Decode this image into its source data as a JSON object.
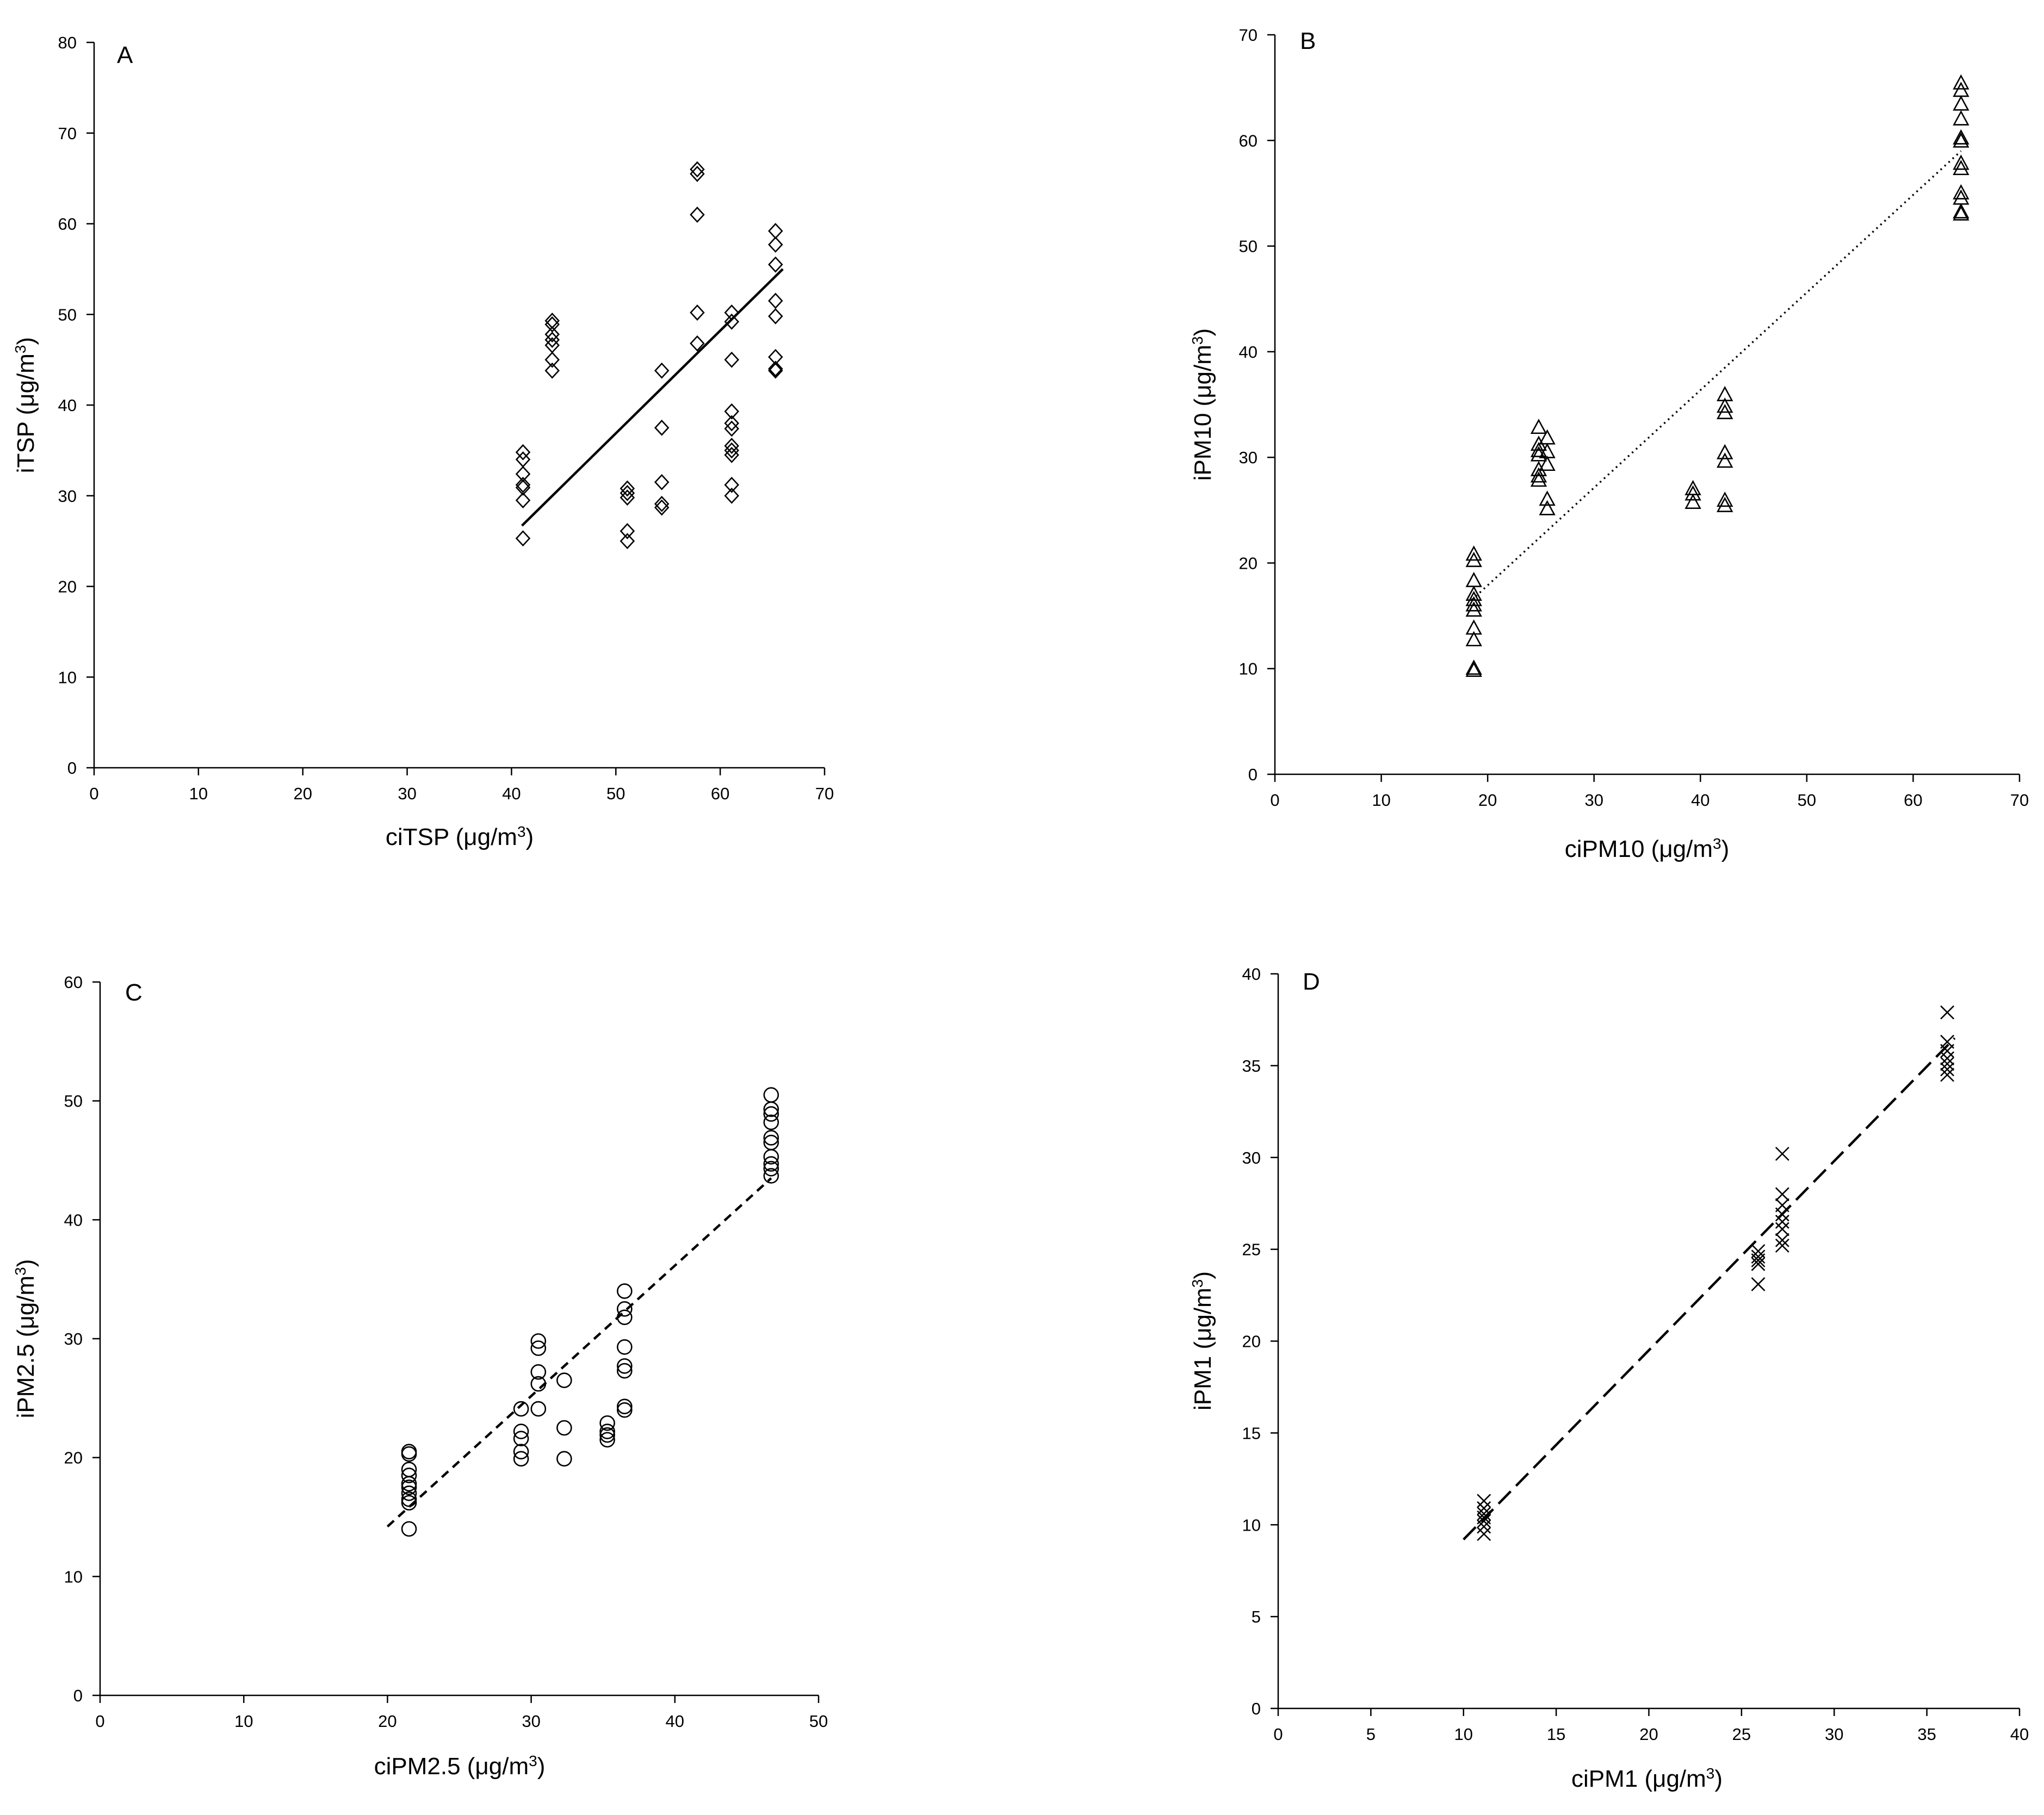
{
  "chart_data": [
    {
      "panel": "A",
      "type": "scatter",
      "marker": "diamond",
      "xlabel": "ciTSP (μg/m",
      "xlabel_sup": "3",
      "xlabel_suffix": ")",
      "ylabel": "iTSP (μg/m",
      "ylabel_sup": "3",
      "ylabel_suffix": ")",
      "xlim": [
        0,
        70
      ],
      "ylim": [
        0,
        80
      ],
      "xticks": [
        "0",
        "10",
        "20",
        "30",
        "40",
        "50",
        "60",
        "70"
      ],
      "yticks": [
        "0",
        "10",
        "20",
        "30",
        "40",
        "50",
        "60",
        "70",
        "80"
      ],
      "trendline": {
        "style": "solid",
        "x": [
          41,
          66
        ],
        "y": [
          26.7,
          55
        ]
      },
      "points": [
        [
          41.1,
          34.8
        ],
        [
          41.1,
          34
        ],
        [
          41.1,
          32.4
        ],
        [
          41.1,
          31.2
        ],
        [
          41.1,
          30.9
        ],
        [
          41.1,
          29.5
        ],
        [
          41.1,
          25.3
        ],
        [
          43.9,
          49.3
        ],
        [
          43.9,
          48.9
        ],
        [
          43.9,
          47.8
        ],
        [
          43.9,
          47.2
        ],
        [
          43.9,
          46.6
        ],
        [
          43.9,
          45
        ],
        [
          43.9,
          43.8
        ],
        [
          51.1,
          30.8
        ],
        [
          51.1,
          30.3
        ],
        [
          51.1,
          29.8
        ],
        [
          51.1,
          26.1
        ],
        [
          51.1,
          25
        ],
        [
          54.4,
          43.8
        ],
        [
          54.4,
          37.5
        ],
        [
          54.4,
          31.5
        ],
        [
          54.4,
          29.1
        ],
        [
          54.4,
          28.7
        ],
        [
          57.8,
          66
        ],
        [
          57.8,
          65.5
        ],
        [
          57.8,
          61
        ],
        [
          57.8,
          50.2
        ],
        [
          57.8,
          46.8
        ],
        [
          61.1,
          50.2
        ],
        [
          61.1,
          49.2
        ],
        [
          61.1,
          45
        ],
        [
          61.1,
          39.3
        ],
        [
          61.1,
          38
        ],
        [
          61.1,
          37.4
        ],
        [
          61.1,
          35.5
        ],
        [
          61.1,
          35
        ],
        [
          61.1,
          34.5
        ],
        [
          61.1,
          31.2
        ],
        [
          61.1,
          30
        ],
        [
          65.3,
          59.2
        ],
        [
          65.3,
          57.7
        ],
        [
          65.3,
          55.5
        ],
        [
          65.3,
          51.5
        ],
        [
          65.3,
          49.8
        ],
        [
          65.3,
          45.3
        ],
        [
          65.3,
          44
        ],
        [
          65.3,
          43.8
        ]
      ]
    },
    {
      "panel": "B",
      "type": "scatter",
      "marker": "triangle",
      "xlabel": "ciPM10 (μg/m",
      "xlabel_sup": "3",
      "xlabel_suffix": ")",
      "ylabel": "iPM10 (μg/m",
      "ylabel_sup": "3",
      "ylabel_suffix": ")",
      "xlim": [
        0,
        70
      ],
      "ylim": [
        0,
        70
      ],
      "xticks": [
        "0",
        "10",
        "20",
        "30",
        "40",
        "50",
        "60",
        "70"
      ],
      "yticks": [
        "0",
        "10",
        "20",
        "30",
        "40",
        "50",
        "60",
        "70"
      ],
      "trendline": {
        "style": "dotted",
        "x": [
          18.5,
          64.5
        ],
        "y": [
          16.5,
          59
        ]
      },
      "points": [
        [
          18.7,
          20.8
        ],
        [
          18.7,
          20.2
        ],
        [
          18.7,
          18.3
        ],
        [
          18.7,
          17
        ],
        [
          18.7,
          16.5
        ],
        [
          18.7,
          16
        ],
        [
          18.7,
          15.5
        ],
        [
          18.7,
          13.8
        ],
        [
          18.7,
          12.7
        ],
        [
          18.7,
          10
        ],
        [
          18.7,
          9.8
        ],
        [
          24.8,
          32.8
        ],
        [
          24.8,
          31.2
        ],
        [
          24.8,
          30.6
        ],
        [
          24.8,
          30.2
        ],
        [
          24.8,
          28.8
        ],
        [
          24.8,
          28.2
        ],
        [
          24.8,
          27.8
        ],
        [
          25.6,
          31.8
        ],
        [
          25.6,
          30.5
        ],
        [
          25.6,
          29.3
        ],
        [
          25.6,
          26
        ],
        [
          25.6,
          25.1
        ],
        [
          39.3,
          27
        ],
        [
          39.3,
          26.5
        ],
        [
          39.3,
          25.7
        ],
        [
          42.3,
          35.9
        ],
        [
          42.3,
          34.8
        ],
        [
          42.3,
          34.2
        ],
        [
          42.3,
          30.4
        ],
        [
          42.3,
          29.6
        ],
        [
          42.3,
          25.9
        ],
        [
          42.3,
          25.4
        ],
        [
          64.5,
          65.4
        ],
        [
          64.5,
          64.7
        ],
        [
          64.5,
          63.4
        ],
        [
          64.5,
          62
        ],
        [
          64.5,
          60.2
        ],
        [
          64.5,
          59.9
        ],
        [
          64.5,
          57.8
        ],
        [
          64.5,
          57.3
        ],
        [
          64.5,
          55
        ],
        [
          64.5,
          54.5
        ],
        [
          64.5,
          53.2
        ],
        [
          64.5,
          53
        ]
      ]
    },
    {
      "panel": "C",
      "type": "scatter",
      "marker": "circle",
      "xlabel": "ciPM2.5 (μg/m",
      "xlabel_sup": "3",
      "xlabel_suffix": ")",
      "ylabel": "iPM2.5 (μg/m",
      "ylabel_sup": "3",
      "ylabel_suffix": ")",
      "xlim": [
        0,
        50
      ],
      "ylim": [
        0,
        60
      ],
      "xticks": [
        "0",
        "10",
        "20",
        "30",
        "40",
        "50"
      ],
      "yticks": [
        "0",
        "10",
        "20",
        "30",
        "40",
        "50",
        "60"
      ],
      "trendline": {
        "style": "dashed",
        "x": [
          20,
          46.7
        ],
        "y": [
          14.2,
          43.5
        ]
      },
      "points": [
        [
          21.5,
          20.5
        ],
        [
          21.5,
          20.3
        ],
        [
          21.5,
          19
        ],
        [
          21.5,
          18.5
        ],
        [
          21.5,
          17.8
        ],
        [
          21.5,
          17.5
        ],
        [
          21.5,
          17
        ],
        [
          21.5,
          16.5
        ],
        [
          21.5,
          16.2
        ],
        [
          21.5,
          14
        ],
        [
          29.3,
          24.1
        ],
        [
          29.3,
          22.2
        ],
        [
          29.3,
          21.6
        ],
        [
          29.3,
          20.5
        ],
        [
          29.3,
          19.9
        ],
        [
          30.5,
          29.8
        ],
        [
          30.5,
          29.2
        ],
        [
          30.5,
          27.2
        ],
        [
          30.5,
          26.2
        ],
        [
          30.5,
          24.1
        ],
        [
          32.3,
          26.5
        ],
        [
          32.3,
          22.5
        ],
        [
          32.3,
          19.9
        ],
        [
          35.3,
          22.9
        ],
        [
          35.3,
          22.2
        ],
        [
          35.3,
          21.9
        ],
        [
          35.3,
          21.5
        ],
        [
          36.5,
          34
        ],
        [
          36.5,
          32.5
        ],
        [
          36.5,
          31.8
        ],
        [
          36.5,
          29.3
        ],
        [
          36.5,
          27.7
        ],
        [
          36.5,
          27.3
        ],
        [
          36.5,
          24.3
        ],
        [
          36.5,
          24
        ],
        [
          46.7,
          50.5
        ],
        [
          46.7,
          49.3
        ],
        [
          46.7,
          48.9
        ],
        [
          46.7,
          48.2
        ],
        [
          46.7,
          46.9
        ],
        [
          46.7,
          46.5
        ],
        [
          46.7,
          45.3
        ],
        [
          46.7,
          44.7
        ],
        [
          46.7,
          44.3
        ],
        [
          46.7,
          43.7
        ]
      ]
    },
    {
      "panel": "D",
      "type": "scatter",
      "marker": "cross",
      "xlabel": "ciPM1 (μg/m",
      "xlabel_sup": "3",
      "xlabel_suffix": ")",
      "ylabel": "iPM1 (μg/m",
      "ylabel_sup": "3",
      "ylabel_suffix": ")",
      "xlim": [
        0,
        40
      ],
      "ylim": [
        0,
        40
      ],
      "xticks": [
        "0",
        "5",
        "10",
        "15",
        "20",
        "25",
        "30",
        "35",
        "40"
      ],
      "yticks": [
        "0",
        "5",
        "10",
        "15",
        "20",
        "25",
        "30",
        "35",
        "40"
      ],
      "trendline": {
        "style": "long-dash",
        "x": [
          10,
          36.5
        ],
        "y": [
          9.2,
          36.5
        ]
      },
      "points": [
        [
          11.1,
          11.3
        ],
        [
          11.1,
          10.9
        ],
        [
          11.1,
          10.6
        ],
        [
          11.1,
          10.4
        ],
        [
          11.1,
          10.2
        ],
        [
          11.1,
          9.9
        ],
        [
          11.1,
          9.5
        ],
        [
          25.9,
          24.9
        ],
        [
          25.9,
          24.6
        ],
        [
          25.9,
          24.4
        ],
        [
          25.9,
          24.2
        ],
        [
          25.9,
          23.1
        ],
        [
          27.2,
          30.2
        ],
        [
          27.2,
          28
        ],
        [
          27.2,
          27.4
        ],
        [
          27.2,
          26.9
        ],
        [
          27.2,
          26.5
        ],
        [
          27.2,
          26.1
        ],
        [
          27.2,
          25.5
        ],
        [
          27.2,
          25.2
        ],
        [
          36.1,
          37.9
        ],
        [
          36.1,
          36.3
        ],
        [
          36.1,
          35.8
        ],
        [
          36.1,
          35.4
        ],
        [
          36.1,
          35.1
        ],
        [
          36.1,
          34.8
        ],
        [
          36.1,
          34.5
        ]
      ]
    }
  ]
}
